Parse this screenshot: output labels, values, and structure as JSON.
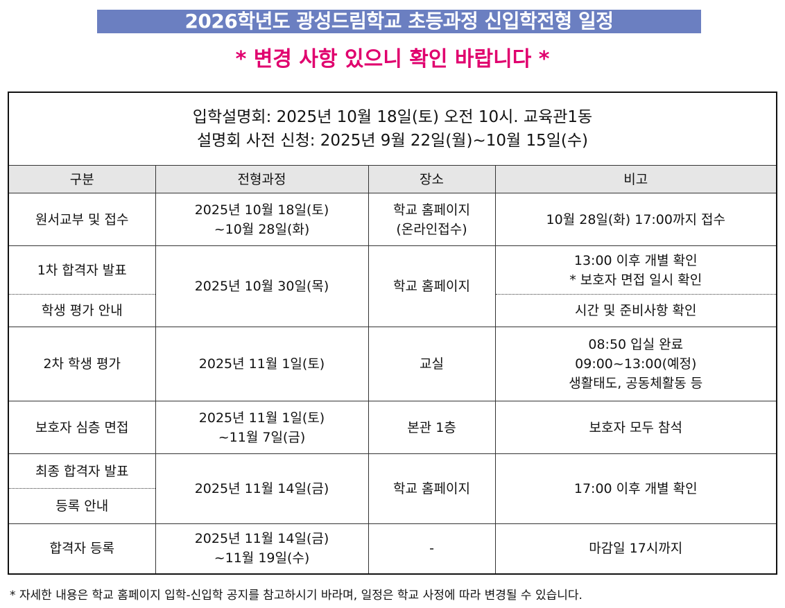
{
  "title": "2026학년도 광성드림학교 초등과정 신입학전형 일정",
  "notice": "* 변경 사항 있으니 확인 바랍니다 *",
  "info": {
    "line1": "입학설명회: 2025년 10월 18일(토) 오전 10시. 교육관1동",
    "line2": "설명회 사전 신청: 2025년 9월 22일(월)~10월 15일(수)"
  },
  "headers": [
    "구분",
    "전형과정",
    "장소",
    "비고"
  ],
  "rows": {
    "r1": {
      "cat": "원서교부 및 접수",
      "date1": "2025년 10월 18일(토)",
      "date2": "~10월 28일(화)",
      "place1": "학교 홈페이지",
      "place2": "(온라인접수)",
      "note": "10월 28일(화) 17:00까지 접수"
    },
    "r2": {
      "cat_a": "1차 합격자 발표",
      "cat_b": "학생 평가 안내",
      "date": "2025년 10월 30일(목)",
      "place": "학교 홈페이지",
      "note_a1": "13:00 이후 개별 확인",
      "note_a2": "* 보호자 면접 일시 확인",
      "note_b": "시간 및 준비사항 확인"
    },
    "r3": {
      "cat": "2차 학생 평가",
      "date": "2025년 11월 1일(토)",
      "place": "교실",
      "note1": "08:50 입실 완료",
      "note2": "09:00~13:00(예정)",
      "note3": "생활태도, 공동체활동 등"
    },
    "r4": {
      "cat": "보호자 심층 면접",
      "date1": "2025년 11월 1일(토)",
      "date2": "~11월 7일(금)",
      "place": "본관 1층",
      "note": "보호자 모두 참석"
    },
    "r5": {
      "cat_a": "최종 합격자 발표",
      "cat_b": "등록 안내",
      "date": "2025년 11월 14일(금)",
      "place": "학교 홈페이지",
      "note": "17:00 이후 개별 확인"
    },
    "r6": {
      "cat": "합격자 등록",
      "date1": "2025년 11월 14일(금)",
      "date2": "~11월 19일(수)",
      "place": "-",
      "note": "마감일 17시까지"
    }
  },
  "footnote": "* 자세한 내용은 학교 홈페이지 입학-신입학 공지를 참고하시기 바라며, 일정은 학교 사정에 따라 변경될 수 있습니다.",
  "colors": {
    "title_bg": "#6b7fc1",
    "notice": "#e0006e",
    "header_bg": "#e6e6e6"
  }
}
